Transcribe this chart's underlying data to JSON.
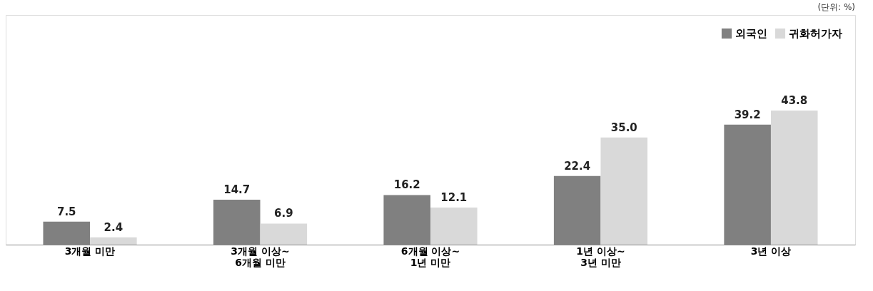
{
  "chart_data": {
    "type": "bar",
    "categories": [
      "3개월 미만",
      "3개월 이상~\n6개월 미만",
      "6개월 이상~\n1년 미만",
      "1년 이상~\n3년 미만",
      "3년 이상"
    ],
    "series": [
      {
        "name": "외국인",
        "color": "#808080",
        "values": [
          7.5,
          14.7,
          16.2,
          22.4,
          39.2
        ],
        "value_labels": [
          "7.5",
          "14.7",
          "16.2",
          "22.4",
          "39.2"
        ]
      },
      {
        "name": "귀화허가자",
        "color": "#d9d9d9",
        "values": [
          2.4,
          6.9,
          12.1,
          35.0,
          43.8
        ],
        "value_labels": [
          "2.4",
          "6.9",
          "12.1",
          "35.0",
          "43.8"
        ]
      }
    ],
    "ylim": [
      0,
      75
    ],
    "legend": "top right",
    "tick_labels": "x",
    "annotations": [
      "(단위: %)"
    ]
  }
}
